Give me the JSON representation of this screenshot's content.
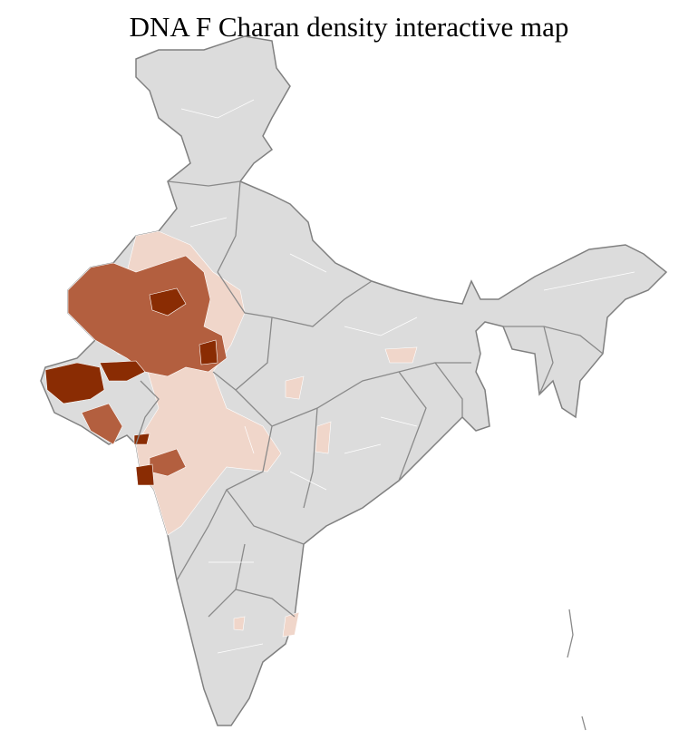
{
  "title": "DNA F Charan density interactive map"
}
